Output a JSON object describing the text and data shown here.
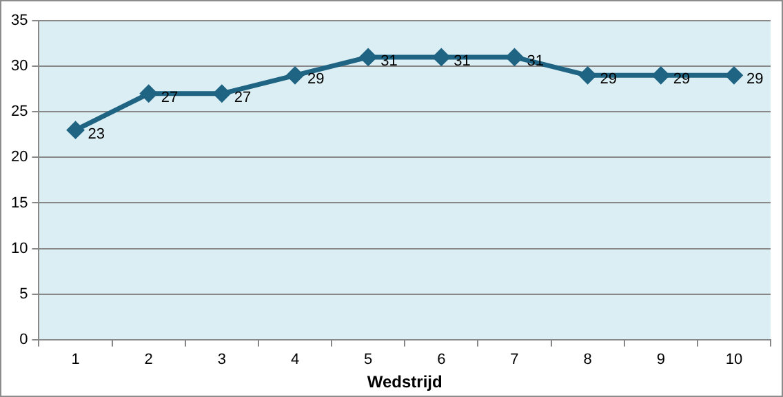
{
  "chart_data": {
    "type": "line",
    "xlabel": "Wedstrijd",
    "categories": [
      "1",
      "2",
      "3",
      "4",
      "5",
      "6",
      "7",
      "8",
      "9",
      "10"
    ],
    "series": [
      {
        "color": "#1f6482",
        "values": [
          23,
          27,
          27,
          29,
          31,
          31,
          31,
          29,
          29,
          29
        ]
      }
    ],
    "ylim": [
      0,
      35
    ],
    "yticks": [
      0,
      5,
      10,
      15,
      20,
      25,
      30,
      35
    ],
    "grid": "y",
    "legend": false,
    "marker": "diamond",
    "line_style": "solid",
    "data_labels": true
  }
}
